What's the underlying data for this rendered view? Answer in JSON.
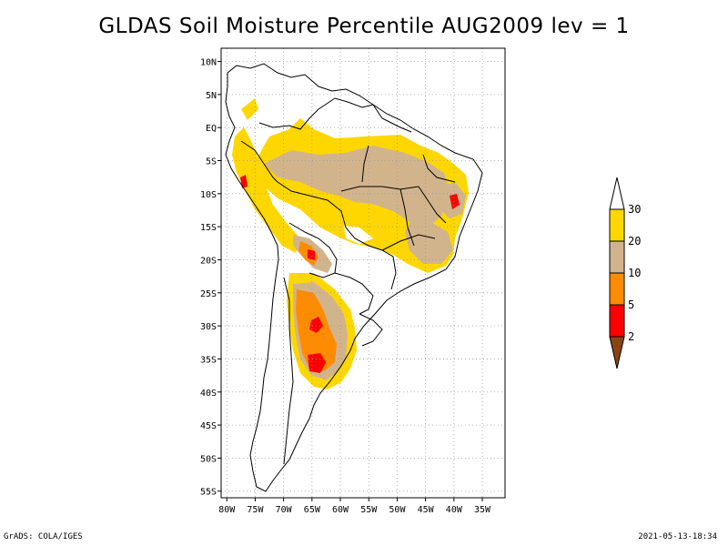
{
  "title": "GLDAS Soil Moisture Percentile AUG2009 lev = 1",
  "map": {
    "lon_range": [
      -81,
      -31
    ],
    "lat_range": [
      -56,
      12
    ],
    "lon_ticks": [
      {
        "value": -80,
        "label": "80W"
      },
      {
        "value": -75,
        "label": "75W"
      },
      {
        "value": -70,
        "label": "70W"
      },
      {
        "value": -65,
        "label": "65W"
      },
      {
        "value": -60,
        "label": "60W"
      },
      {
        "value": -55,
        "label": "55W"
      },
      {
        "value": -50,
        "label": "50W"
      },
      {
        "value": -45,
        "label": "45W"
      },
      {
        "value": -40,
        "label": "40W"
      },
      {
        "value": -35,
        "label": "35W"
      }
    ],
    "lat_ticks": [
      {
        "value": 10,
        "label": "10N"
      },
      {
        "value": 5,
        "label": "5N"
      },
      {
        "value": 0,
        "label": "EQ"
      },
      {
        "value": -5,
        "label": "5S"
      },
      {
        "value": -10,
        "label": "10S"
      },
      {
        "value": -15,
        "label": "15S"
      },
      {
        "value": -20,
        "label": "20S"
      },
      {
        "value": -25,
        "label": "25S"
      },
      {
        "value": -30,
        "label": "30S"
      },
      {
        "value": -35,
        "label": "35S"
      },
      {
        "value": -40,
        "label": "40S"
      },
      {
        "value": -45,
        "label": "45S"
      },
      {
        "value": -50,
        "label": "50S"
      },
      {
        "value": -55,
        "label": "55S"
      }
    ],
    "grid": true
  },
  "colorbar": {
    "levels": [
      {
        "label": "2",
        "color": "#8b4513"
      },
      {
        "label": "5",
        "color": "#ff0000"
      },
      {
        "label": "10",
        "color": "#ff8c00"
      },
      {
        "label": "20",
        "color": "#d2b48c"
      },
      {
        "label": "30",
        "color": "#ffd700"
      }
    ],
    "top_color": "#ffffff"
  },
  "footer": {
    "left": "GrADS: COLA/IGES",
    "right": "2021-05-13-18:34"
  }
}
